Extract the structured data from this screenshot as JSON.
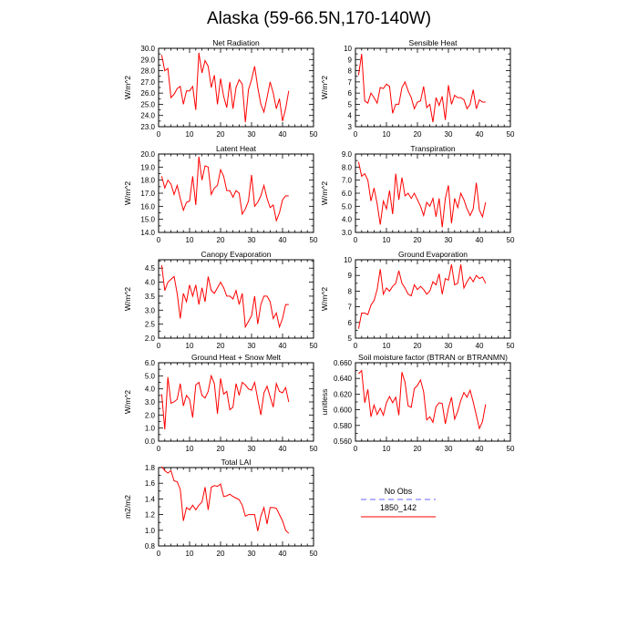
{
  "title": "Alaska (59-66.5N,170-140W)",
  "colors": {
    "model": "#ff0000",
    "obs": "#9999ff",
    "axis": "#000000"
  },
  "legend": {
    "entries": [
      {
        "label": "No Obs",
        "style": "dashed",
        "color": "#9999ff"
      },
      {
        "label": "1850_142",
        "style": "solid",
        "color": "#ff0000"
      }
    ]
  },
  "chart_data": [
    {
      "type": "line",
      "title": "Net Radiation",
      "ylabel": "W/m^2",
      "xlabel": "",
      "xlim": [
        0,
        50
      ],
      "ylim": [
        23.0,
        30.0
      ],
      "xticks": [
        0,
        10,
        20,
        30,
        40,
        50
      ],
      "yticks": [
        "23.0",
        "24.0",
        "25.0",
        "26.0",
        "27.0",
        "28.0",
        "29.0",
        "30.0"
      ],
      "minor_y": 0.5,
      "series": [
        {
          "name": "1850_142",
          "x_start": 1,
          "values": [
            29.4,
            28.0,
            28.2,
            25.6,
            25.9,
            26.4,
            26.6,
            25.0,
            26.2,
            26.2,
            26.6,
            24.5,
            29.6,
            27.8,
            28.9,
            28.4,
            26.5,
            27.6,
            25.0,
            27.3,
            25.7,
            24.7,
            27.0,
            24.6,
            26.5,
            27.2,
            26.8,
            23.4,
            26.3,
            27.2,
            28.4,
            26.5,
            25.0,
            24.3,
            25.6,
            27.0,
            26.0,
            24.6,
            25.5,
            23.5,
            24.6,
            26.2
          ]
        }
      ]
    },
    {
      "type": "line",
      "title": "Sensible Heat",
      "ylabel": "W/m^2",
      "xlabel": "",
      "xlim": [
        0,
        50
      ],
      "ylim": [
        3,
        10
      ],
      "xticks": [
        0,
        10,
        20,
        30,
        40,
        50
      ],
      "yticks": [
        "3",
        "4",
        "5",
        "6",
        "7",
        "8",
        "9",
        "10"
      ],
      "minor_y": 0.5,
      "series": [
        {
          "name": "1850_142",
          "x_start": 1,
          "values": [
            7.6,
            9.5,
            5.3,
            5.1,
            6.0,
            5.6,
            5.1,
            6.5,
            6.4,
            6.8,
            6.6,
            4.2,
            5.0,
            5.0,
            6.5,
            7.0,
            6.2,
            5.6,
            4.6,
            5.2,
            5.3,
            6.6,
            4.7,
            5.0,
            3.4,
            5.6,
            4.9,
            5.7,
            3.6,
            6.7,
            5.0,
            5.8,
            5.6,
            5.6,
            5.4,
            4.6,
            5.0,
            6.3,
            4.6,
            5.4,
            5.2,
            5.2
          ]
        }
      ]
    },
    {
      "type": "line",
      "title": "Latent Heat",
      "ylabel": "W/m^2",
      "xlabel": "",
      "xlim": [
        0,
        50
      ],
      "ylim": [
        14.0,
        20.0
      ],
      "xticks": [
        0,
        10,
        20,
        30,
        40,
        50
      ],
      "yticks": [
        "14.0",
        "15.0",
        "16.0",
        "17.0",
        "18.0",
        "19.0",
        "20.0"
      ],
      "minor_y": 0.5,
      "series": [
        {
          "name": "1850_142",
          "x_start": 1,
          "values": [
            18.3,
            17.4,
            18.0,
            17.7,
            16.9,
            17.6,
            16.6,
            15.7,
            16.3,
            16.4,
            18.3,
            16.1,
            19.8,
            18.0,
            19.1,
            19.0,
            16.9,
            17.4,
            17.6,
            18.8,
            18.3,
            17.2,
            17.2,
            16.7,
            17.2,
            17.0,
            15.4,
            15.8,
            16.4,
            18.4,
            16.0,
            16.3,
            16.8,
            17.6,
            16.6,
            15.9,
            16.1,
            14.9,
            15.5,
            16.5,
            16.8,
            16.8
          ]
        }
      ]
    },
    {
      "type": "line",
      "title": "Transpiration",
      "ylabel": "W/m^2",
      "xlabel": "",
      "xlim": [
        0,
        50
      ],
      "ylim": [
        3.0,
        9.0
      ],
      "xticks": [
        0,
        10,
        20,
        30,
        40,
        50
      ],
      "yticks": [
        "3.0",
        "4.0",
        "5.0",
        "6.0",
        "7.0",
        "8.0",
        "9.0"
      ],
      "minor_y": 0.5,
      "series": [
        {
          "name": "1850_142",
          "x_start": 1,
          "values": [
            8.4,
            7.3,
            7.5,
            7.0,
            5.4,
            6.4,
            5.2,
            3.6,
            5.4,
            4.8,
            6.2,
            4.4,
            7.5,
            5.5,
            7.2,
            5.8,
            6.0,
            5.6,
            6.0,
            5.5,
            5.0,
            4.3,
            5.3,
            5.0,
            5.6,
            4.2,
            5.6,
            3.4,
            5.6,
            6.6,
            3.7,
            5.6,
            4.9,
            6.0,
            5.5,
            4.8,
            4.3,
            4.8,
            6.8,
            4.7,
            4.2,
            5.3
          ]
        }
      ]
    },
    {
      "type": "line",
      "title": "Canopy Evaporation",
      "ylabel": "W/m^2",
      "xlabel": "",
      "xlim": [
        0,
        50
      ],
      "ylim": [
        2.0,
        4.5
      ],
      "xticks": [
        0,
        10,
        20,
        30,
        40,
        50
      ],
      "yticks": [
        "2.0",
        "2.5",
        "3.0",
        "3.5",
        "4.0",
        "4.5"
      ],
      "minor_y": 0.25,
      "ytop": 4.8,
      "series": [
        {
          "name": "1850_142",
          "x_start": 1,
          "values": [
            4.6,
            3.7,
            4.0,
            4.1,
            4.2,
            3.6,
            2.7,
            3.6,
            3.3,
            3.9,
            3.5,
            3.9,
            3.2,
            3.8,
            3.3,
            4.2,
            3.7,
            3.6,
            3.8,
            4.0,
            3.8,
            3.5,
            3.5,
            3.4,
            3.7,
            3.2,
            3.6,
            2.4,
            2.6,
            2.8,
            3.5,
            2.5,
            3.2,
            3.5,
            3.5,
            3.3,
            2.7,
            2.9,
            2.4,
            2.7,
            3.2,
            3.2
          ]
        }
      ]
    },
    {
      "type": "line",
      "title": "Ground Evaporation",
      "ylabel": "W/m^2",
      "xlabel": "",
      "xlim": [
        0,
        50
      ],
      "ylim": [
        5,
        10
      ],
      "xticks": [
        0,
        10,
        20,
        30,
        40,
        50
      ],
      "yticks": [
        "5",
        "6",
        "7",
        "8",
        "9",
        "10"
      ],
      "minor_y": 0.5,
      "series": [
        {
          "name": "1850_142",
          "x_start": 1,
          "values": [
            5.6,
            6.6,
            6.6,
            6.5,
            7.1,
            7.4,
            8.1,
            9.4,
            7.8,
            8.2,
            8.0,
            8.3,
            8.5,
            9.3,
            8.5,
            8.2,
            7.8,
            7.7,
            8.4,
            8.1,
            8.3,
            8.1,
            7.8,
            8.0,
            8.6,
            8.4,
            9.1,
            7.8,
            8.8,
            8.7,
            9.7,
            8.4,
            8.5,
            9.7,
            8.2,
            8.6,
            8.9,
            8.6,
            9.0,
            8.8,
            8.9,
            8.5
          ]
        }
      ]
    },
    {
      "type": "line",
      "title": "Ground Heat + Snow Melt",
      "ylabel": "W/m^2",
      "xlabel": "",
      "xlim": [
        0,
        50
      ],
      "ylim": [
        0.0,
        6.0
      ],
      "xticks": [
        0,
        10,
        20,
        30,
        40,
        50
      ],
      "yticks": [
        "0.0",
        "1.0",
        "2.0",
        "3.0",
        "4.0",
        "5.0",
        "6.0"
      ],
      "minor_y": 0.5,
      "series": [
        {
          "name": "1850_142",
          "x_start": 1,
          "values": [
            3.6,
            0.9,
            4.9,
            2.9,
            3.0,
            3.2,
            4.4,
            2.7,
            3.5,
            3.2,
            1.8,
            4.3,
            4.5,
            3.5,
            3.3,
            3.8,
            5.0,
            4.4,
            2.1,
            4.8,
            3.6,
            3.8,
            2.4,
            2.6,
            4.4,
            3.5,
            4.5,
            4.3,
            4.0,
            3.9,
            4.5,
            3.2,
            2.0,
            3.7,
            4.2,
            3.4,
            2.6,
            4.4,
            3.8,
            3.7,
            4.1,
            3.0
          ]
        }
      ]
    },
    {
      "type": "line",
      "title": "Soil moisture factor (BTRAN or BTRANMN)",
      "ylabel": "unitless",
      "xlabel": "",
      "xlim": [
        0,
        50
      ],
      "ylim": [
        0.56,
        0.66
      ],
      "xticks": [
        0,
        10,
        20,
        30,
        40,
        50
      ],
      "yticks": [
        "0.560",
        "0.580",
        "0.600",
        "0.620",
        "0.640",
        "0.660"
      ],
      "minor_y": 0.01,
      "series": [
        {
          "name": "1850_142",
          "x_start": 1,
          "values": [
            0.646,
            0.65,
            0.609,
            0.626,
            0.591,
            0.606,
            0.594,
            0.602,
            0.593,
            0.609,
            0.617,
            0.609,
            0.616,
            0.593,
            0.648,
            0.635,
            0.605,
            0.603,
            0.627,
            0.631,
            0.638,
            0.623,
            0.587,
            0.591,
            0.584,
            0.604,
            0.609,
            0.608,
            0.582,
            0.602,
            0.616,
            0.588,
            0.598,
            0.612,
            0.622,
            0.616,
            0.625,
            0.61,
            0.593,
            0.576,
            0.585,
            0.607
          ]
        }
      ]
    },
    {
      "type": "line",
      "title": "Total LAI",
      "ylabel": "m2/m2",
      "xlabel": "",
      "xlim": [
        0,
        50
      ],
      "ylim": [
        0.8,
        1.8
      ],
      "xticks": [
        0,
        10,
        20,
        30,
        40,
        50
      ],
      "yticks": [
        "0.8",
        "1.0",
        "1.2",
        "1.4",
        "1.6",
        "1.8"
      ],
      "minor_y": 0.1,
      "series": [
        {
          "name": "1850_142",
          "x_start": 1,
          "values": [
            1.81,
            1.76,
            1.73,
            1.76,
            1.63,
            1.62,
            1.52,
            1.12,
            1.29,
            1.26,
            1.32,
            1.26,
            1.32,
            1.36,
            1.55,
            1.26,
            1.55,
            1.57,
            1.56,
            1.59,
            1.43,
            1.44,
            1.46,
            1.43,
            1.41,
            1.39,
            1.32,
            1.18,
            1.2,
            1.2,
            1.2,
            0.99,
            1.18,
            1.29,
            1.08,
            1.29,
            1.29,
            1.28,
            1.2,
            1.12,
            1.0,
            0.96
          ]
        }
      ]
    }
  ]
}
